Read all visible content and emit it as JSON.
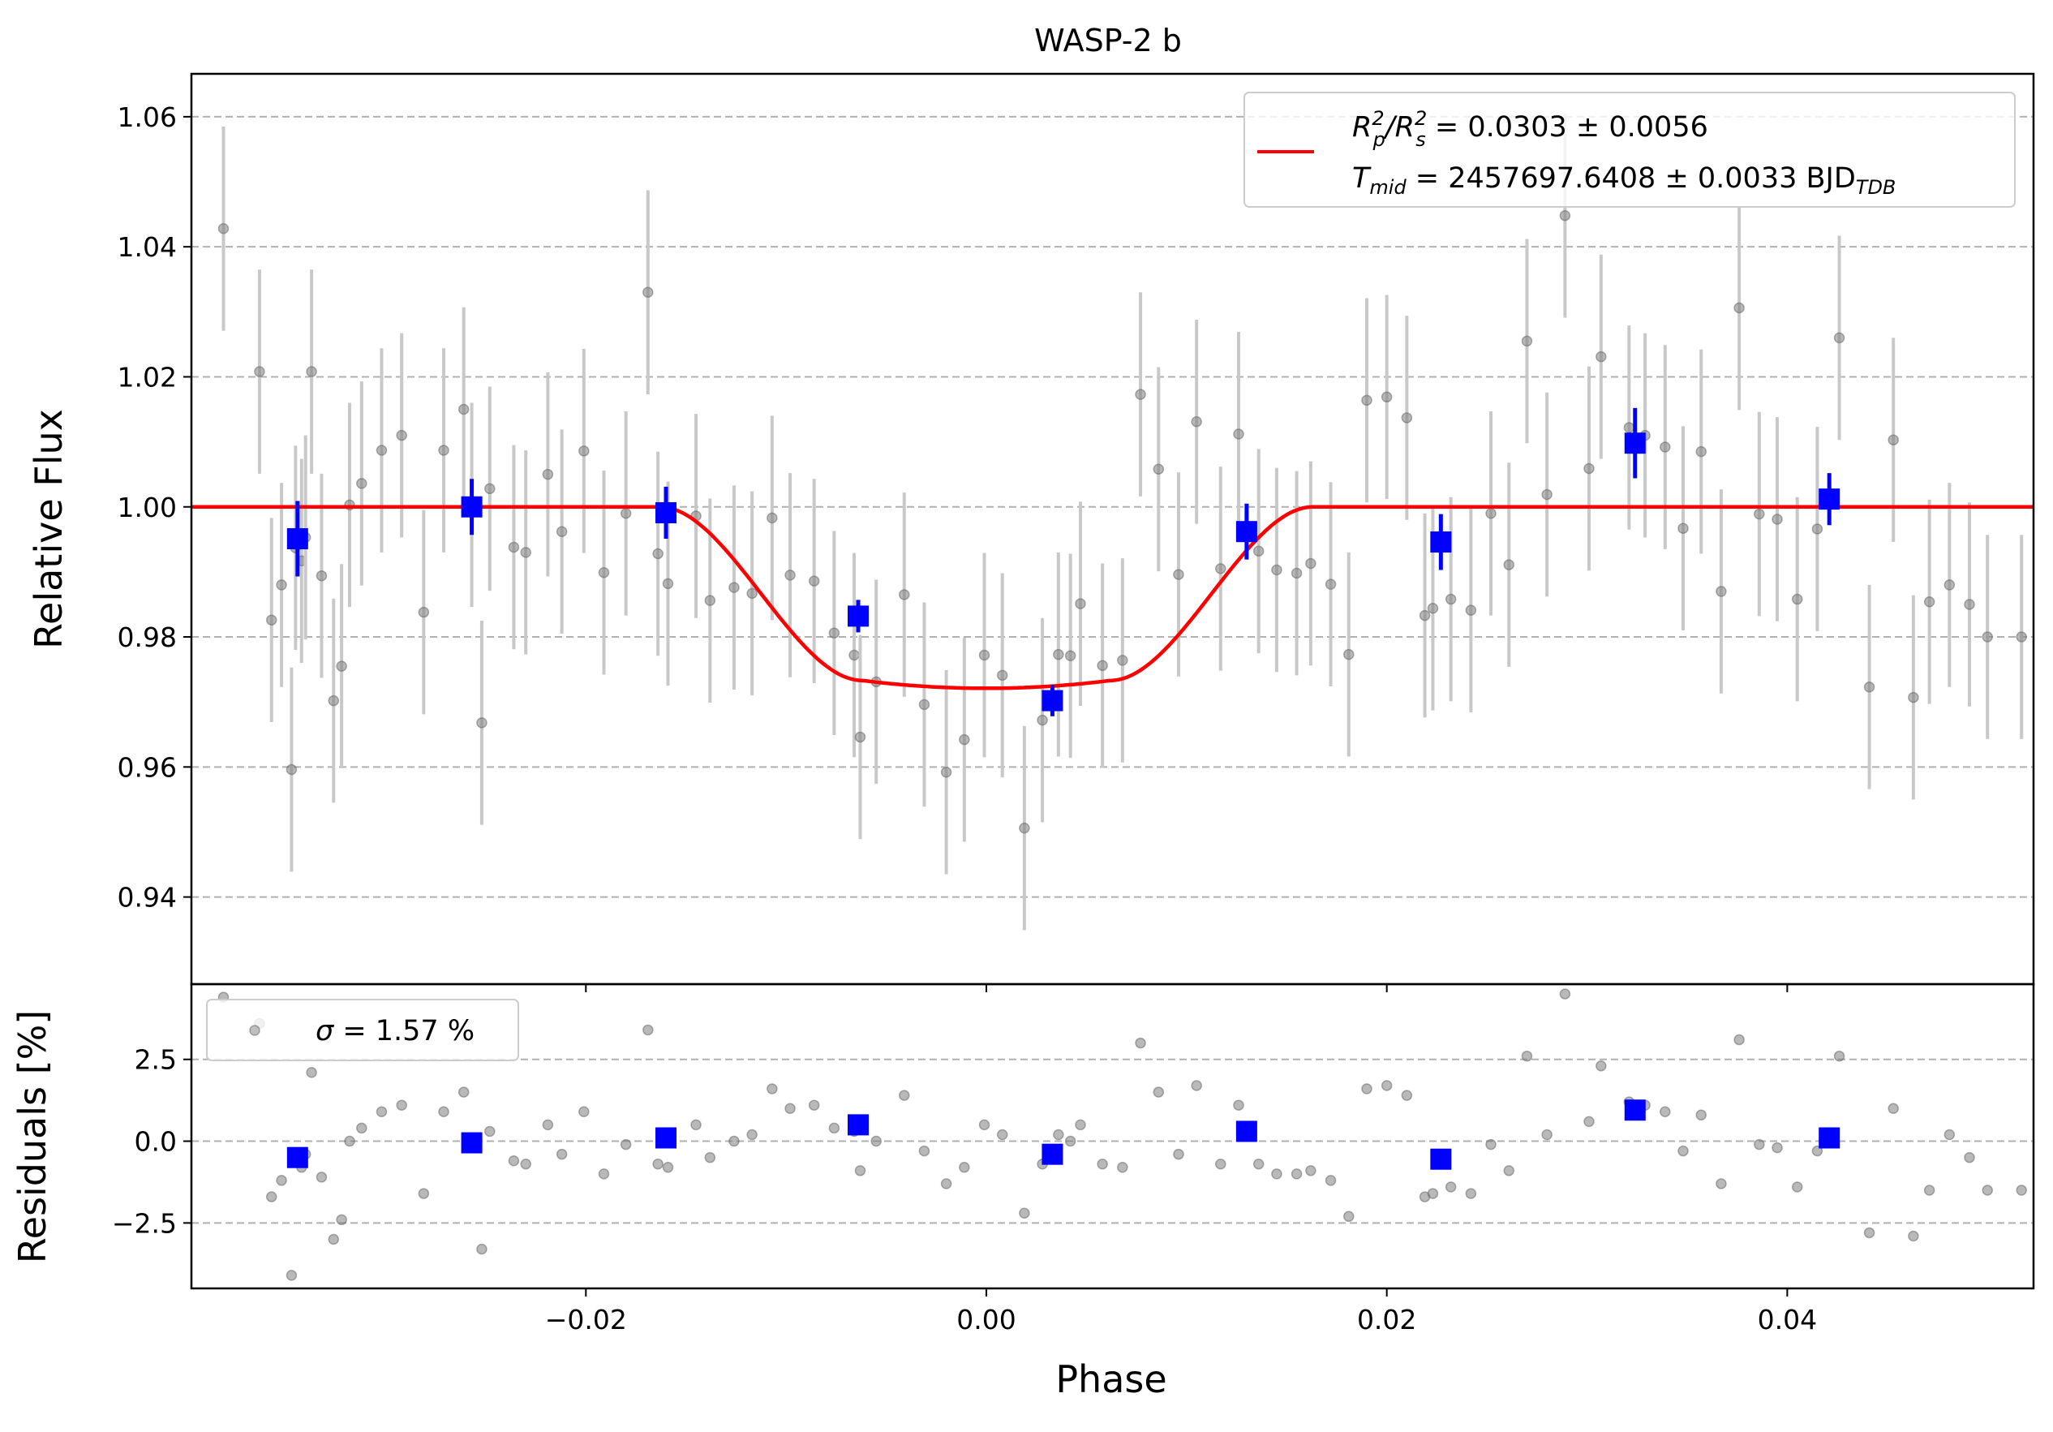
{
  "chart_data": [
    {
      "type": "scatter",
      "title": "WASP-2 b",
      "xlabel": "Phase",
      "ylabel": "Relative Flux",
      "xlim": [
        -0.0397,
        0.0523
      ],
      "ylim": [
        0.9266,
        1.0666
      ],
      "x_ticks": [
        -0.02,
        0.0,
        0.02,
        0.04
      ],
      "x_tick_labels": [
        "−0.02",
        "0.00",
        "0.02",
        "0.04"
      ],
      "y_ticks": [
        0.94,
        0.96,
        0.98,
        1.0,
        1.02,
        1.04,
        1.06
      ],
      "y_tick_labels": [
        "0.94",
        "0.96",
        "0.98",
        "1.00",
        "1.02",
        "1.04",
        "1.06"
      ],
      "grid": "horizontal dashed",
      "legend_position": "top-right",
      "legend_entries": [
        {
          "line1": {
            "prefix_R": "R",
            "sub1": "p",
            "sup1": "2",
            "slash": "/R",
            "sub2": "s",
            "sup2": "2",
            "value": " = 0.0303 ± 0.0056"
          },
          "line2": {
            "prefix_T": "T",
            "sub": "mid",
            "value": " = 2457697.6408 ± 0.0033 BJD",
            "sub2": "TDB"
          }
        }
      ],
      "colors": {
        "model": "#ff0000",
        "binned": "#0000ff",
        "raw_points": "#808080",
        "raw_errorbars": "#c8c8c8",
        "grid": "#b0b0b0"
      },
      "model": {
        "depth": 0.0279,
        "ingress_start": -0.0163,
        "full_start": -0.0062,
        "full_end": 0.0062,
        "egress_end": 0.0163
      },
      "series": [
        {
          "x": [
            -0.0398,
            -0.0381,
            -0.0363,
            -0.0357,
            -0.0352,
            -0.0347,
            -0.0345,
            -0.0342,
            -0.034,
            -0.0337,
            -0.0332,
            -0.0326,
            -0.0322,
            -0.0318,
            -0.0312,
            -0.0302,
            -0.0292,
            -0.0281,
            -0.0271,
            -0.0261,
            -0.0257,
            -0.0252,
            -0.0248,
            -0.0236,
            -0.023,
            -0.0219,
            -0.0212,
            -0.0201,
            -0.0191,
            -0.018,
            -0.0169,
            -0.0164,
            -0.0159,
            -0.0145,
            -0.0138,
            -0.0126,
            -0.0117,
            -0.0107,
            -0.0098,
            -0.0086,
            -0.0076,
            -0.0066,
            -0.0063,
            -0.0055,
            -0.0041,
            -0.0031,
            -0.002,
            -0.0011,
            -0.0001,
            0.0008,
            0.0019,
            0.0028,
            0.0036,
            0.0042,
            0.0047,
            0.0058,
            0.0068,
            0.0077,
            0.0086,
            0.0096,
            0.0105,
            0.0117,
            0.0126,
            0.0136,
            0.0145,
            0.0155,
            0.0162,
            0.0172,
            0.0181,
            0.019,
            0.02,
            0.021,
            0.0219,
            0.0223,
            0.0232,
            0.0242,
            0.0252,
            0.0261,
            0.027,
            0.028,
            0.0289,
            0.0301,
            0.0307,
            0.0321,
            0.0329,
            0.0339,
            0.0348,
            0.0357,
            0.0367,
            0.0376,
            0.0386,
            0.0395,
            0.0405,
            0.0415,
            0.0426,
            0.0441,
            0.0453,
            0.0463,
            0.0471,
            0.0481,
            0.0491,
            0.05,
            0.0517
          ],
          "y": [
            1.0017,
            1.0428,
            1.0208,
            0.9826,
            0.988,
            0.9596,
            0.9937,
            0.9917,
            0.9953,
            1.0208,
            0.9894,
            0.9702,
            0.9755,
            1.0003,
            1.0036,
            1.0087,
            1.011,
            0.9838,
            1.0087,
            1.015,
            1.0003,
            0.9668,
            1.0028,
            0.9938,
            0.993,
            1.005,
            0.9962,
            1.0086,
            0.9899,
            0.999,
            1.033,
            0.9928,
            0.9882,
            0.9986,
            0.9856,
            0.9876,
            0.9867,
            0.9983,
            0.9895,
            0.9886,
            0.9806,
            0.9772,
            0.9646,
            0.9731,
            0.9865,
            0.9696,
            0.9592,
            0.9642,
            0.9772,
            0.9741,
            0.9506,
            0.9672,
            0.9773,
            0.9771,
            0.9851,
            0.9756,
            0.9764,
            1.0173,
            1.0058,
            0.9896,
            1.0131,
            0.9905,
            1.0112,
            0.9932,
            0.9903,
            0.9898,
            0.9913,
            0.9881,
            0.9773,
            1.0164,
            1.0169,
            1.0137,
            0.9833,
            0.9844,
            0.9858,
            0.9841,
            0.999,
            0.9911,
            1.0255,
            1.0019,
            1.0448,
            1.0059,
            1.0231,
            1.0122,
            1.011,
            1.0092,
            0.9967,
            1.0085,
            0.987,
            1.0306,
            0.9989,
            0.9981,
            0.9858,
            0.9966,
            1.026,
            0.9723,
            1.0103,
            0.9707,
            0.9854,
            0.988,
            0.985,
            0.98,
            0.98
          ],
          "yerr": 0.0157
        },
        {
          "x": [
            -0.0344,
            -0.0257,
            -0.016,
            -0.0064,
            0.0033,
            0.013,
            0.0227,
            0.0324,
            0.0421
          ],
          "y": [
            0.9951,
            1.0,
            0.9991,
            0.9832,
            0.9702,
            0.9962,
            0.9946,
            1.0098,
            1.0012
          ],
          "yerr": [
            0.0058,
            0.0043,
            0.004,
            0.0025,
            0.0024,
            0.0043,
            0.0043,
            0.0054,
            0.004
          ]
        }
      ]
    },
    {
      "type": "scatter",
      "xlabel": "Phase",
      "ylabel": "Residuals [%]",
      "xlim": [
        -0.0397,
        0.0523
      ],
      "ylim": [
        -4.5,
        4.8
      ],
      "y_ticks": [
        -2.5,
        0.0,
        2.5
      ],
      "y_tick_labels": [
        "−2.5",
        "0.0",
        "2.5"
      ],
      "grid": "horizontal dashed",
      "legend_position": "top-left",
      "legend_entries": [
        {
          "sigma": "σ",
          "text": " = 1.57 %"
        }
      ],
      "series": [
        {
          "x": [
            -0.0398,
            -0.0381,
            -0.0363,
            -0.0357,
            -0.0352,
            -0.0347,
            -0.0345,
            -0.0342,
            -0.034,
            -0.0337,
            -0.0332,
            -0.0326,
            -0.0322,
            -0.0318,
            -0.0312,
            -0.0302,
            -0.0292,
            -0.0281,
            -0.0271,
            -0.0261,
            -0.0257,
            -0.0252,
            -0.0248,
            -0.0236,
            -0.023,
            -0.0219,
            -0.0212,
            -0.0201,
            -0.0191,
            -0.018,
            -0.0169,
            -0.0164,
            -0.0159,
            -0.0145,
            -0.0138,
            -0.0126,
            -0.0117,
            -0.0107,
            -0.0098,
            -0.0086,
            -0.0076,
            -0.0066,
            -0.0063,
            -0.0055,
            -0.0041,
            -0.0031,
            -0.002,
            -0.0011,
            -0.0001,
            0.0008,
            0.0019,
            0.0028,
            0.0036,
            0.0042,
            0.0047,
            0.0058,
            0.0068,
            0.0077,
            0.0086,
            0.0096,
            0.0105,
            0.0117,
            0.0126,
            0.0136,
            0.0145,
            0.0155,
            0.0162,
            0.0172,
            0.0181,
            0.019,
            0.02,
            0.021,
            0.0219,
            0.0223,
            0.0232,
            0.0242,
            0.0252,
            0.0261,
            0.027,
            0.028,
            0.0289,
            0.0301,
            0.0307,
            0.0321,
            0.0329,
            0.0339,
            0.0348,
            0.0357,
            0.0367,
            0.0376,
            0.0386,
            0.0395,
            0.0405,
            0.0415,
            0.0426,
            0.0441,
            0.0453,
            0.0463,
            0.0471,
            0.0481,
            0.0491,
            0.05,
            0.0517
          ],
          "y": [
            0.2,
            4.4,
            3.6,
            -1.7,
            -1.2,
            -4.1,
            -0.6,
            -0.8,
            -0.4,
            2.1,
            -1.1,
            -3.0,
            -2.4,
            0.0,
            0.4,
            0.9,
            1.1,
            -1.6,
            0.9,
            1.5,
            0.0,
            -3.3,
            0.3,
            -0.6,
            -0.7,
            0.5,
            -0.4,
            0.9,
            -1.0,
            -0.1,
            3.4,
            -0.7,
            -0.8,
            0.5,
            -0.5,
            0.0,
            0.2,
            1.6,
            1.0,
            1.1,
            0.4,
            0.3,
            -0.9,
            0.0,
            1.4,
            -0.3,
            -1.3,
            -0.8,
            0.5,
            0.2,
            -2.2,
            -0.7,
            0.2,
            0.0,
            0.5,
            -0.7,
            -0.8,
            3.0,
            1.5,
            -0.4,
            1.7,
            -0.7,
            1.1,
            -0.7,
            -1.0,
            -1.0,
            -0.9,
            -1.2,
            -2.3,
            1.6,
            1.7,
            1.4,
            -1.7,
            -1.6,
            -1.4,
            -1.6,
            -0.1,
            -0.9,
            2.6,
            0.2,
            4.5,
            0.6,
            2.3,
            1.2,
            1.1,
            0.9,
            -0.3,
            0.8,
            -1.3,
            3.1,
            -0.1,
            -0.2,
            -1.4,
            -0.3,
            2.6,
            -2.8,
            1.0,
            -2.9,
            -1.5,
            0.2,
            -0.5,
            -1.5,
            -1.5
          ]
        },
        {
          "x": [
            -0.0344,
            -0.0257,
            -0.016,
            -0.0064,
            0.0033,
            0.013,
            0.0227,
            0.0324,
            0.0421
          ],
          "y": [
            -0.5,
            -0.05,
            0.1,
            0.5,
            -0.4,
            0.3,
            -0.55,
            0.95,
            0.1
          ]
        }
      ]
    }
  ]
}
